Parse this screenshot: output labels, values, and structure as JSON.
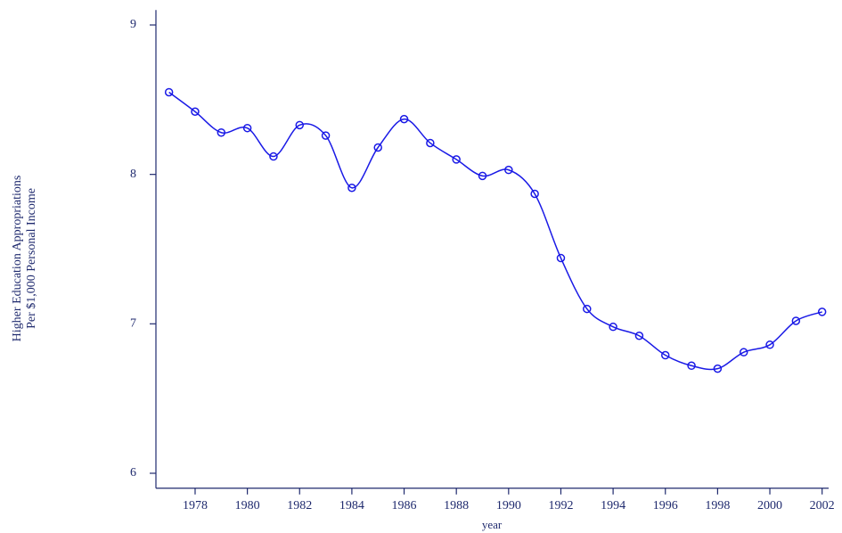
{
  "chart_data": {
    "type": "line",
    "y_label": [
      "Higher Education Appropriations",
      "Per $1,000 Personal Income"
    ],
    "x_label": "year",
    "x": [
      1977,
      1978,
      1979,
      1980,
      1981,
      1982,
      1983,
      1984,
      1985,
      1986,
      1987,
      1988,
      1989,
      1990,
      1991,
      1992,
      1993,
      1994,
      1995,
      1996,
      1997,
      1998,
      1999,
      2000,
      2001,
      2002
    ],
    "series": [
      {
        "color": "#1a1ae6",
        "values": [
          8.55,
          8.42,
          8.28,
          8.31,
          8.12,
          8.33,
          8.26,
          7.91,
          8.18,
          8.37,
          8.21,
          8.1,
          7.99,
          8.03,
          7.87,
          7.44,
          7.1,
          6.98,
          6.92,
          6.79,
          6.72,
          6.7,
          6.81,
          6.86,
          7.02,
          7.08
        ]
      }
    ],
    "xlim": [
      1976.5,
      2002.25
    ],
    "xticks": [
      1978,
      1980,
      1982,
      1984,
      1986,
      1988,
      1990,
      1992,
      1994,
      1996,
      1998,
      2000,
      2002
    ],
    "ylim": [
      5.9,
      9.1
    ],
    "yticks": [
      6,
      7,
      8,
      9
    ]
  }
}
